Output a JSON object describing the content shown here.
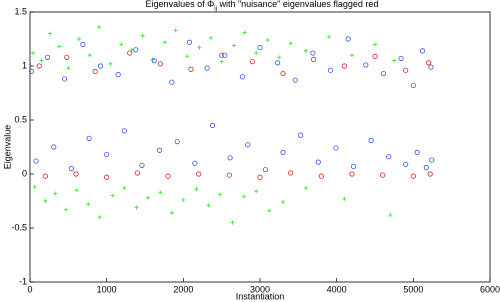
{
  "chart_data": {
    "type": "scatter",
    "title": "Eigenvalues of Φ",
    "title_subscript": "ij",
    "title_rest": " with \"nuisance\" eigenvalues flagged red",
    "xlabel": "Instantiation",
    "ylabel": "Eigenvalue",
    "xlim": [
      0,
      6000
    ],
    "xticks": [
      0,
      1000,
      2000,
      3000,
      4000,
      5000,
      6000
    ],
    "ylim": [
      -1,
      1.5
    ],
    "yticks": [
      -1,
      -0.5,
      0,
      0.5,
      1,
      1.5
    ],
    "grid": false,
    "series": [
      {
        "color": "#33ee33",
        "marker": "plus",
        "x": [
          40,
          150,
          260,
          380,
          500,
          640,
          780,
          900,
          1050,
          1190,
          1330,
          1470,
          1600,
          1760,
          1900,
          2050,
          2210,
          2360,
          2500,
          2660,
          2800,
          2950,
          3100,
          3250,
          3400,
          3600,
          3900,
          4200,
          4500,
          4750,
          60,
          200,
          330,
          470,
          610,
          760,
          910,
          1080,
          1230,
          1390,
          1540,
          1700,
          1850,
          2000,
          2170,
          2330,
          2480,
          2640,
          2790,
          2950,
          3120,
          3300,
          3600,
          4100,
          4700
        ],
        "values": [
          1.12,
          1.05,
          1.3,
          1.18,
          0.98,
          1.25,
          1.1,
          1.36,
          1.02,
          1.2,
          1.15,
          1.28,
          1.06,
          1.22,
          1.33,
          1.09,
          1.17,
          1.26,
          1.04,
          1.19,
          1.31,
          1.12,
          1.24,
          1.08,
          1.21,
          1.14,
          1.27,
          1.1,
          1.2,
          1.05,
          -0.12,
          -0.25,
          -0.18,
          -0.33,
          -0.15,
          -0.28,
          -0.4,
          -0.2,
          -0.13,
          -0.31,
          -0.22,
          -0.17,
          -0.36,
          -0.24,
          -0.14,
          -0.29,
          -0.19,
          -0.45,
          -0.21,
          -0.16,
          -0.34,
          -0.26,
          -0.13,
          -0.23,
          -0.38
        ]
      },
      {
        "color": "#3355ee",
        "marker": "circle",
        "x": [
          20,
          230,
          450,
          690,
          920,
          1150,
          1380,
          1620,
          1850,
          2080,
          2310,
          2540,
          2770,
          3000,
          3230,
          3460,
          3690,
          3920,
          4150,
          4380,
          4610,
          4840,
          5000,
          5120,
          5230,
          80,
          310,
          540,
          770,
          1000,
          1230,
          1460,
          1690,
          1920,
          2150,
          2380,
          2610,
          2840,
          3070,
          3300,
          3530,
          3760,
          3990,
          4220,
          4450,
          4680,
          4900,
          5050,
          5170,
          5240
        ],
        "values": [
          0.95,
          1.08,
          0.88,
          1.2,
          1.0,
          0.92,
          1.15,
          1.05,
          0.85,
          1.22,
          0.98,
          1.1,
          0.9,
          1.17,
          1.03,
          0.87,
          1.12,
          0.96,
          1.25,
          1.01,
          0.93,
          1.07,
          0.82,
          1.14,
          0.99,
          0.12,
          0.25,
          0.05,
          0.33,
          0.18,
          0.4,
          0.08,
          0.22,
          0.3,
          0.1,
          0.45,
          0.15,
          0.27,
          0.04,
          0.2,
          0.36,
          0.11,
          0.24,
          0.07,
          0.31,
          0.16,
          0.09,
          0.2,
          0.06,
          0.13
        ]
      },
      {
        "color": "#dd2222",
        "marker": "circle",
        "x": [
          120,
          480,
          850,
          1300,
          1700,
          2100,
          2500,
          2900,
          3300,
          3700,
          4100,
          4500,
          4900,
          5200,
          200,
          600,
          1000,
          1400,
          1800,
          2200,
          2600,
          3000,
          3400,
          3800,
          4200,
          4600,
          5000,
          5220
        ],
        "values": [
          1.0,
          1.08,
          0.95,
          1.12,
          1.02,
          0.97,
          1.1,
          1.04,
          0.93,
          1.06,
          1.0,
          1.09,
          0.96,
          1.03,
          -0.02,
          0.0,
          -0.03,
          0.01,
          -0.02,
          0.0,
          -0.01,
          -0.03,
          0.01,
          -0.02,
          0.0,
          -0.01,
          -0.02,
          0.0
        ]
      }
    ]
  }
}
